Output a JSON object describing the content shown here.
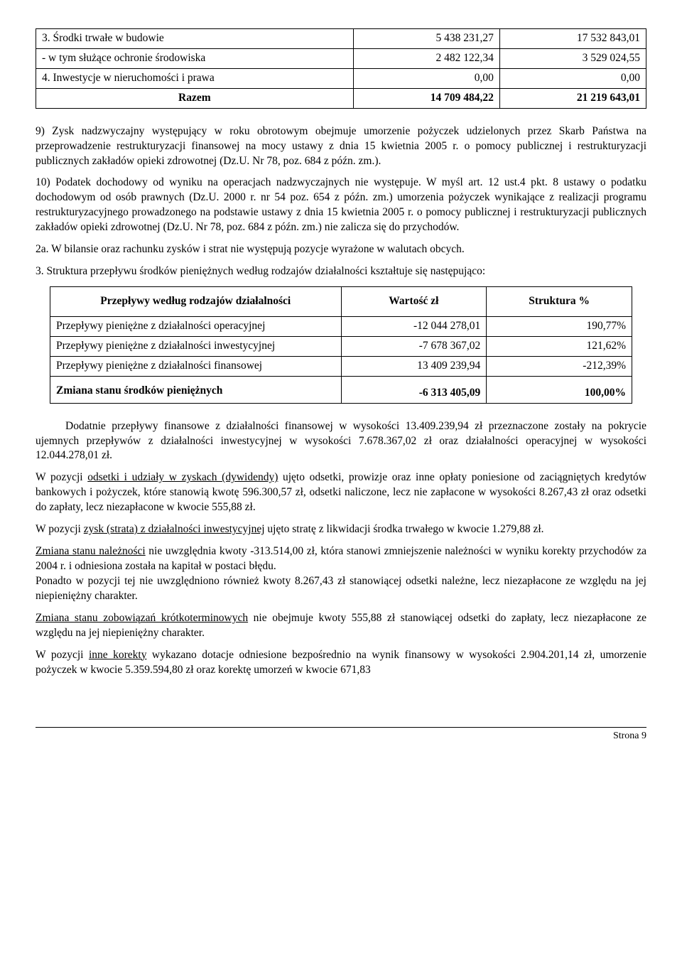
{
  "table1": {
    "rows": [
      {
        "label": "3. Środki trwałe w budowie",
        "v1": "5 438 231,27",
        "v2": "17 532 843,01",
        "bold": false
      },
      {
        "label": "- w tym służące ochronie środowiska",
        "v1": "2 482 122,34",
        "v2": "3 529 024,55",
        "bold": false
      },
      {
        "label": "4. Inwestycje w nieruchomości i prawa",
        "v1": "0,00",
        "v2": "0,00",
        "bold": false
      },
      {
        "label": "Razem",
        "v1": "14 709 484,22",
        "v2": "21 219 643,01",
        "bold": true,
        "center": true
      }
    ]
  },
  "para9": "9) Zysk nadzwyczajny występujący w roku obrotowym obejmuje umorzenie pożyczek udzielonych przez Skarb Państwa na przeprowadzenie restrukturyzacji finansowej na mocy ustawy z dnia 15 kwietnia 2005 r. o pomocy publicznej i restrukturyzacji publicznych zakładów opieki zdrowotnej (Dz.U. Nr 78, poz. 684 z późn. zm.).",
  "para10": "10) Podatek dochodowy od wyniku na operacjach nadzwyczajnych nie występuje. W myśl art. 12 ust.4 pkt. 8 ustawy o podatku dochodowym od osób prawnych (Dz.U. 2000 r. nr 54 poz. 654 z późn. zm.) umorzenia pożyczek wynikające z realizacji programu restrukturyzacyjnego prowadzonego na podstawie ustawy z dnia 15 kwietnia 2005 r. o pomocy publicznej i restrukturyzacji publicznych zakładów opieki zdrowotnej (Dz.U. Nr 78, poz. 684 z późn. zm.) nie zalicza się do przychodów.",
  "para2a": "2a. W bilansie oraz rachunku zysków i strat nie występują pozycje wyrażone w walutach obcych.",
  "para3": "3.  Struktura przepływu środków pieniężnych według rodzajów działalności kształtuje się następująco:",
  "table2": {
    "headers": [
      "Przepływy według rodzajów działalności",
      "Wartość zł",
      "Struktura %"
    ],
    "rows": [
      {
        "label": "Przepływy pieniężne z działalności operacyjnej",
        "v1": "-12 044 278,01",
        "v2": "190,77%"
      },
      {
        "label": "Przepływy pieniężne z działalności inwestycyjnej",
        "v1": "-7 678 367,02",
        "v2": "121,62%"
      },
      {
        "label": "Przepływy pieniężne z działalności finansowej",
        "v1": "13 409 239,94",
        "v2": "-212,39%"
      }
    ],
    "totalLabel": "Zmiana stanu środków pieniężnych",
    "totalV1": "-6 313 405,09",
    "totalV2": "100,00%"
  },
  "paraA": "Dodatnie przepływy finansowe z działalności finansowej w wysokości 13.409.239,94 zł przeznaczone zostały na pokrycie ujemnych przepływów z działalności inwestycyjnej w wysokości 7.678.367,02 zł oraz działalności operacyjnej w wysokości 12.044.278,01 zł.",
  "paraB_pre": "W pozycji ",
  "paraB_u": "odsetki i udziały w zyskach (dywidendy)",
  "paraB_post": " ujęto odsetki, prowizje oraz inne opłaty poniesione od zaciągniętych kredytów bankowych i pożyczek, które stanowią kwotę 596.300,57 zł, odsetki naliczone, lecz nie zapłacone w wysokości 8.267,43 zł  oraz odsetki do zapłaty, lecz niezapłacone w kwocie 555,88 zł.",
  "paraC_pre": "W pozycji ",
  "paraC_u": "zysk (strata) z działalności inwestycyjnej",
  "paraC_post": " ujęto stratę z likwidacji środka trwałego w kwocie 1.279,88 zł.",
  "paraD_u": "Zmiana stanu należności",
  "paraD_post": " nie uwzględnia kwoty -313.514,00 zł, która stanowi zmniejszenie należności w wyniku korekty przychodów za 2004 r. i odniesiona została na kapitał w postaci błędu.",
  "paraD2": "Ponadto w pozycji tej nie uwzględniono również kwoty 8.267,43 zł stanowiącej odsetki należne, lecz niezapłacone ze względu na jej niepieniężny charakter.",
  "paraE_u": "Zmiana stanu zobowiązań krótkoterminowych",
  "paraE_post": " nie obejmuje kwoty 555,88 zł stanowiącej odsetki do zapłaty, lecz niezapłacone ze względu na jej niepieniężny charakter.",
  "paraF_pre": "W pozycji ",
  "paraF_u": "inne korekty",
  "paraF_post": " wykazano dotacje odniesione bezpośrednio na wynik finansowy w wysokości 2.904.201,14 zł, umorzenie pożyczek w kwocie 5.359.594,80 zł oraz korektę umorzeń w kwocie 671,83",
  "pageFooter": "Strona 9"
}
